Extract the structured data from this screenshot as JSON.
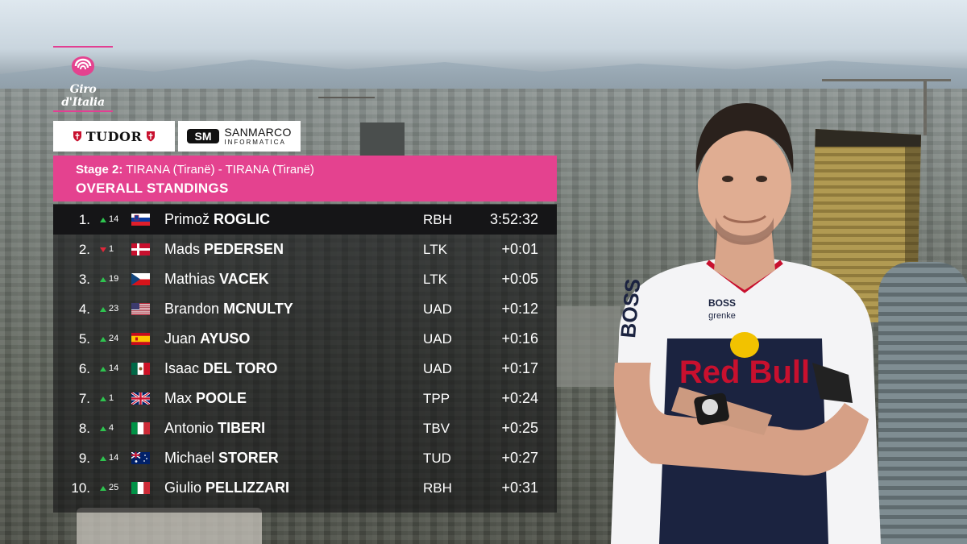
{
  "logo": {
    "text": "Giro d'Italia",
    "icon": "giro-rose-logo"
  },
  "sponsors": [
    {
      "name": "TUDOR",
      "icon": "tudor-shield-icon"
    },
    {
      "name": "SANMARCO",
      "sub": "INFORMATICA",
      "icon": "sanmarco-sm-logo"
    }
  ],
  "header": {
    "stage_label": "Stage 2:",
    "stage_route": "TIRANA (Tiranë) - TIRANA (Tiranë)",
    "title": "OVERALL STANDINGS",
    "color": "#e4428f"
  },
  "standings": [
    {
      "pos": "1.",
      "move_dir": "up",
      "move": "14",
      "flag": "SI",
      "first": "Primož",
      "last": "ROGLIC",
      "team": "RBH",
      "time": "3:52:32"
    },
    {
      "pos": "2.",
      "move_dir": "down",
      "move": "1",
      "flag": "DK",
      "first": "Mads",
      "last": "PEDERSEN",
      "team": "LTK",
      "time": "+0:01"
    },
    {
      "pos": "3.",
      "move_dir": "up",
      "move": "19",
      "flag": "CZ",
      "first": "Mathias",
      "last": "VACEK",
      "team": "LTK",
      "time": "+0:05"
    },
    {
      "pos": "4.",
      "move_dir": "up",
      "move": "23",
      "flag": "US",
      "first": "Brandon",
      "last": "MCNULTY",
      "team": "UAD",
      "time": "+0:12"
    },
    {
      "pos": "5.",
      "move_dir": "up",
      "move": "24",
      "flag": "ES",
      "first": "Juan",
      "last": "AYUSO",
      "team": "UAD",
      "time": "+0:16"
    },
    {
      "pos": "6.",
      "move_dir": "up",
      "move": "14",
      "flag": "MX",
      "first": "Isaac",
      "last": "DEL TORO",
      "team": "UAD",
      "time": "+0:17"
    },
    {
      "pos": "7.",
      "move_dir": "up",
      "move": "1",
      "flag": "GB",
      "first": "Max",
      "last": "POOLE",
      "team": "TPP",
      "time": "+0:24"
    },
    {
      "pos": "8.",
      "move_dir": "up",
      "move": "4",
      "flag": "IT",
      "first": "Antonio",
      "last": "TIBERI",
      "team": "TBV",
      "time": "+0:25"
    },
    {
      "pos": "9.",
      "move_dir": "up",
      "move": "14",
      "flag": "AU",
      "first": "Michael",
      "last": "STORER",
      "team": "TUD",
      "time": "+0:27"
    },
    {
      "pos": "10.",
      "move_dir": "up",
      "move": "25",
      "flag": "IT",
      "first": "Giulio",
      "last": "PELLIZZARI",
      "team": "RBH",
      "time": "+0:31"
    }
  ],
  "rider_photo": {
    "jersey_texts": [
      "BOSS",
      "Red Bull",
      "grenke",
      "BOSS"
    ]
  },
  "colors": {
    "up": "#2ec44f",
    "down": "#e0273a",
    "table_bg": "#121214"
  }
}
